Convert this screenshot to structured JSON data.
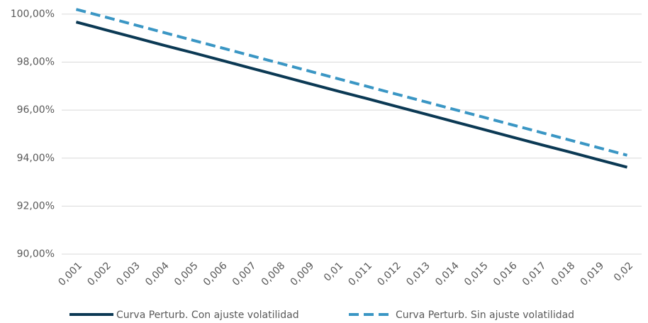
{
  "chart_data": {
    "type": "line",
    "categories": [
      "0,001",
      "0,002",
      "0,003",
      "0,004",
      "0,005",
      "0,006",
      "0,007",
      "0,008",
      "0,009",
      "0,01",
      "0,011",
      "0,012",
      "0,013",
      "0,014",
      "0,015",
      "0,016",
      "0,017",
      "0,018",
      "0,019",
      "0,02"
    ],
    "series": [
      {
        "name": "Curva Perturb. Con ajuste volatilidad",
        "color": "#0b3954",
        "dash": false,
        "values": [
          99.67,
          99.35,
          99.03,
          98.71,
          98.4,
          98.08,
          97.76,
          97.44,
          97.12,
          96.8,
          96.49,
          96.17,
          95.85,
          95.53,
          95.21,
          94.89,
          94.57,
          94.26,
          93.94,
          93.62
        ]
      },
      {
        "name": "Curva Perturb. Sin ajuste volatilidad",
        "color": "#3a96c4",
        "dash": true,
        "values": [
          100.2,
          99.88,
          99.56,
          99.24,
          98.92,
          98.6,
          98.28,
          97.96,
          97.64,
          97.32,
          97.0,
          96.68,
          96.36,
          96.04,
          95.72,
          95.4,
          95.08,
          94.76,
          94.44,
          94.12
        ]
      }
    ],
    "ylim": [
      90,
      100.5
    ],
    "yticks": [
      {
        "value": 90,
        "label": "90,00%"
      },
      {
        "value": 92,
        "label": "92,00%"
      },
      {
        "value": 94,
        "label": "94,00%"
      },
      {
        "value": 96,
        "label": "96,00%"
      },
      {
        "value": 98,
        "label": "98,00%"
      },
      {
        "value": 100,
        "label": "100,00%"
      }
    ],
    "grid": true,
    "legend": "bottom"
  }
}
